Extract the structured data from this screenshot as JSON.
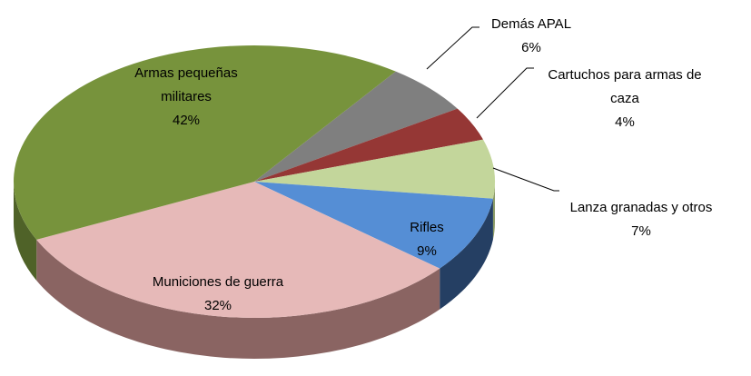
{
  "chart_data": {
    "type": "pie",
    "categories": [
      "Demás APAL",
      "Cartuchos para armas de caza",
      "Lanza granadas y otros",
      "Rifles",
      "Municiones de guerra",
      "Armas pequeñas militares"
    ],
    "values": [
      6,
      4,
      7,
      9,
      32,
      42
    ],
    "value_labels": [
      "6%",
      "4%",
      "7%",
      "9%",
      "32%",
      "42%"
    ],
    "colors": [
      "#7f7f7f",
      "#953735",
      "#c3d69b",
      "#558ed5",
      "#e6b9b8",
      "#77933c"
    ],
    "side_colors": [
      "#555555",
      "#622322",
      "#8a9a66",
      "#253f63",
      "#8a6462",
      "#4f6228"
    ]
  }
}
